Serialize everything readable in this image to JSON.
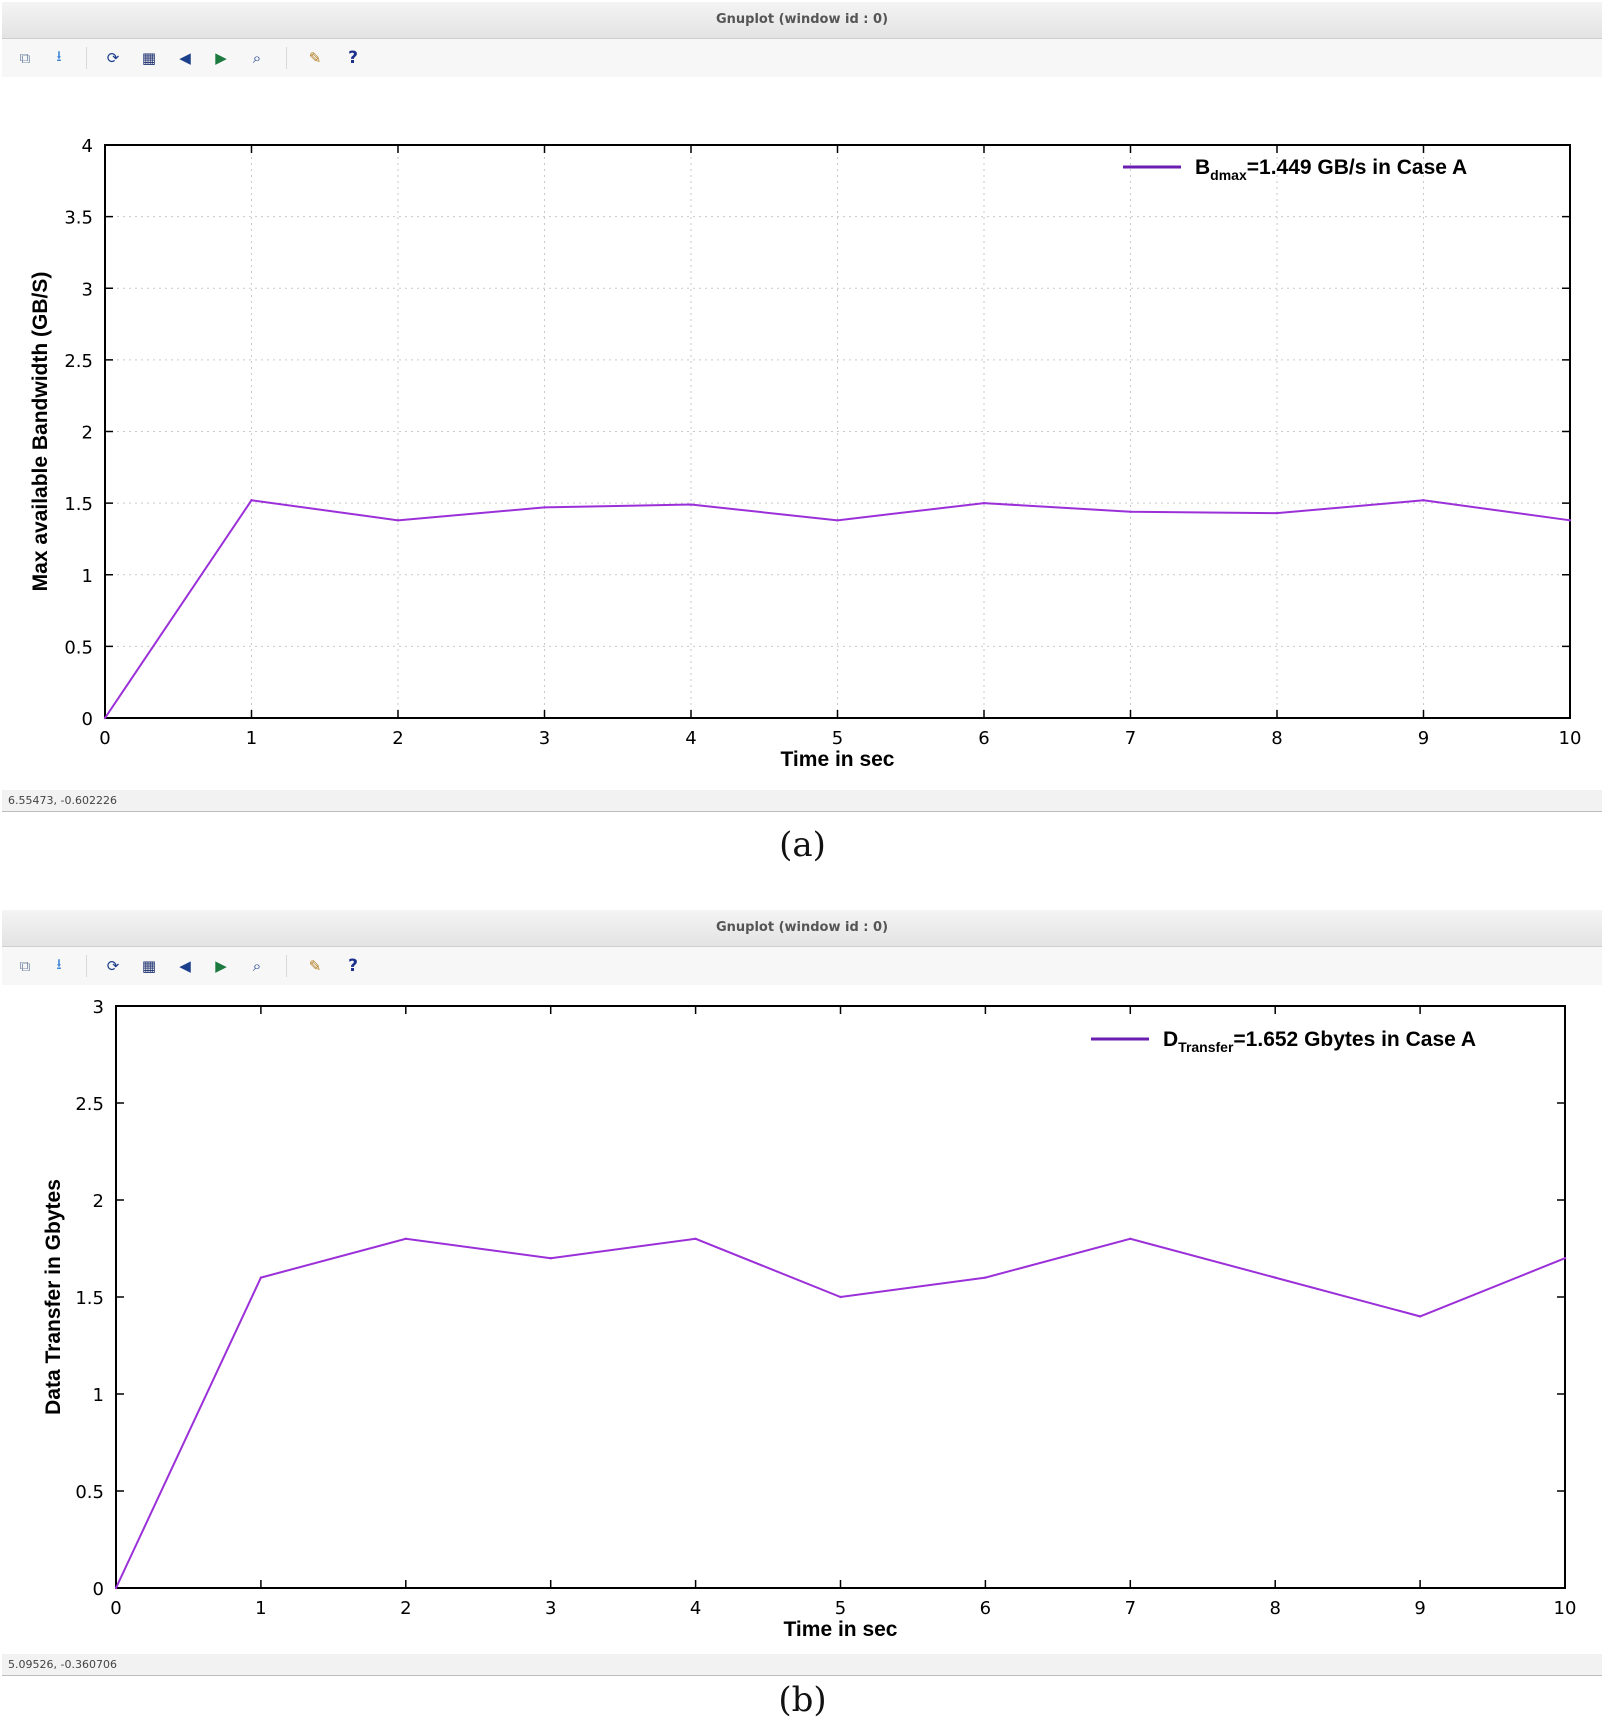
{
  "windows": [
    {
      "title": "Gnuplot (window id : 0)",
      "status": "6.55473, -0.602226",
      "caption": "(a)"
    },
    {
      "title": "Gnuplot (window id : 0)",
      "status": "5.09526, -0.360706",
      "caption": "(b)"
    }
  ],
  "toolbar": [
    {
      "name": "copy-clipboard-icon",
      "glyph": "⧉",
      "color": "#7a8ea8"
    },
    {
      "name": "export-icon",
      "glyph": "⭳",
      "color": "#3b87d8"
    },
    {
      "name": "replot-icon",
      "glyph": "⟳",
      "color": "#1c3f8c"
    },
    {
      "name": "grid-icon",
      "glyph": "▦",
      "color": "#1c2f6e"
    },
    {
      "name": "zoom-prev-icon",
      "glyph": "◀",
      "color": "#1c3f8c"
    },
    {
      "name": "zoom-next-icon",
      "glyph": "▶",
      "color": "#1c7a3f"
    },
    {
      "name": "autoscale-icon",
      "glyph": "⌕",
      "color": "#1c3f8c"
    },
    {
      "name": "settings-icon",
      "glyph": "✎",
      "color": "#b07a1a"
    },
    {
      "name": "help-icon",
      "glyph": "?",
      "color": "#1c2f8c"
    }
  ],
  "chart_data": [
    {
      "type": "line",
      "title": "",
      "xlabel": "Time in sec",
      "ylabel": "Max available Bandwidth (GB/S)",
      "xlim": [
        0,
        10
      ],
      "ylim": [
        0,
        4
      ],
      "x_ticks": [
        0,
        1,
        2,
        3,
        4,
        5,
        6,
        7,
        8,
        9,
        10
      ],
      "y_ticks": [
        "0",
        "0.5",
        "1",
        "1.5",
        "2",
        "2.5",
        "3",
        "3.5",
        "4"
      ],
      "grid": true,
      "legend_position": "top-right",
      "series": [
        {
          "legend_main": "B",
          "legend_sub": "dmax",
          "legend_rest": "=1.449 GB/s in Case A",
          "color": "#9b30d9",
          "x": [
            0,
            1,
            2,
            3,
            4,
            5,
            6,
            7,
            8,
            9,
            10
          ],
          "y": [
            0,
            1.52,
            1.38,
            1.47,
            1.49,
            1.38,
            1.5,
            1.44,
            1.43,
            1.52,
            1.38
          ]
        }
      ]
    },
    {
      "type": "line",
      "title": "",
      "xlabel": "Time in sec",
      "ylabel": "Data Transfer in Gbytes",
      "xlim": [
        0,
        10
      ],
      "ylim": [
        0,
        3
      ],
      "x_ticks": [
        0,
        1,
        2,
        3,
        4,
        5,
        6,
        7,
        8,
        9,
        10
      ],
      "y_ticks": [
        "0",
        "0.5",
        "1",
        "1.5",
        "2",
        "2.5",
        "3"
      ],
      "grid": false,
      "legend_position": "top-right",
      "series": [
        {
          "legend_main": "D",
          "legend_sub": "Transfer",
          "legend_rest": "=1.652 Gbytes in Case A",
          "color": "#9b30d9",
          "x": [
            0,
            1,
            2,
            3,
            4,
            5,
            6,
            7,
            8,
            9,
            10
          ],
          "y": [
            0,
            1.6,
            1.8,
            1.7,
            1.8,
            1.5,
            1.6,
            1.8,
            1.6,
            1.4,
            1.7
          ]
        }
      ]
    }
  ]
}
